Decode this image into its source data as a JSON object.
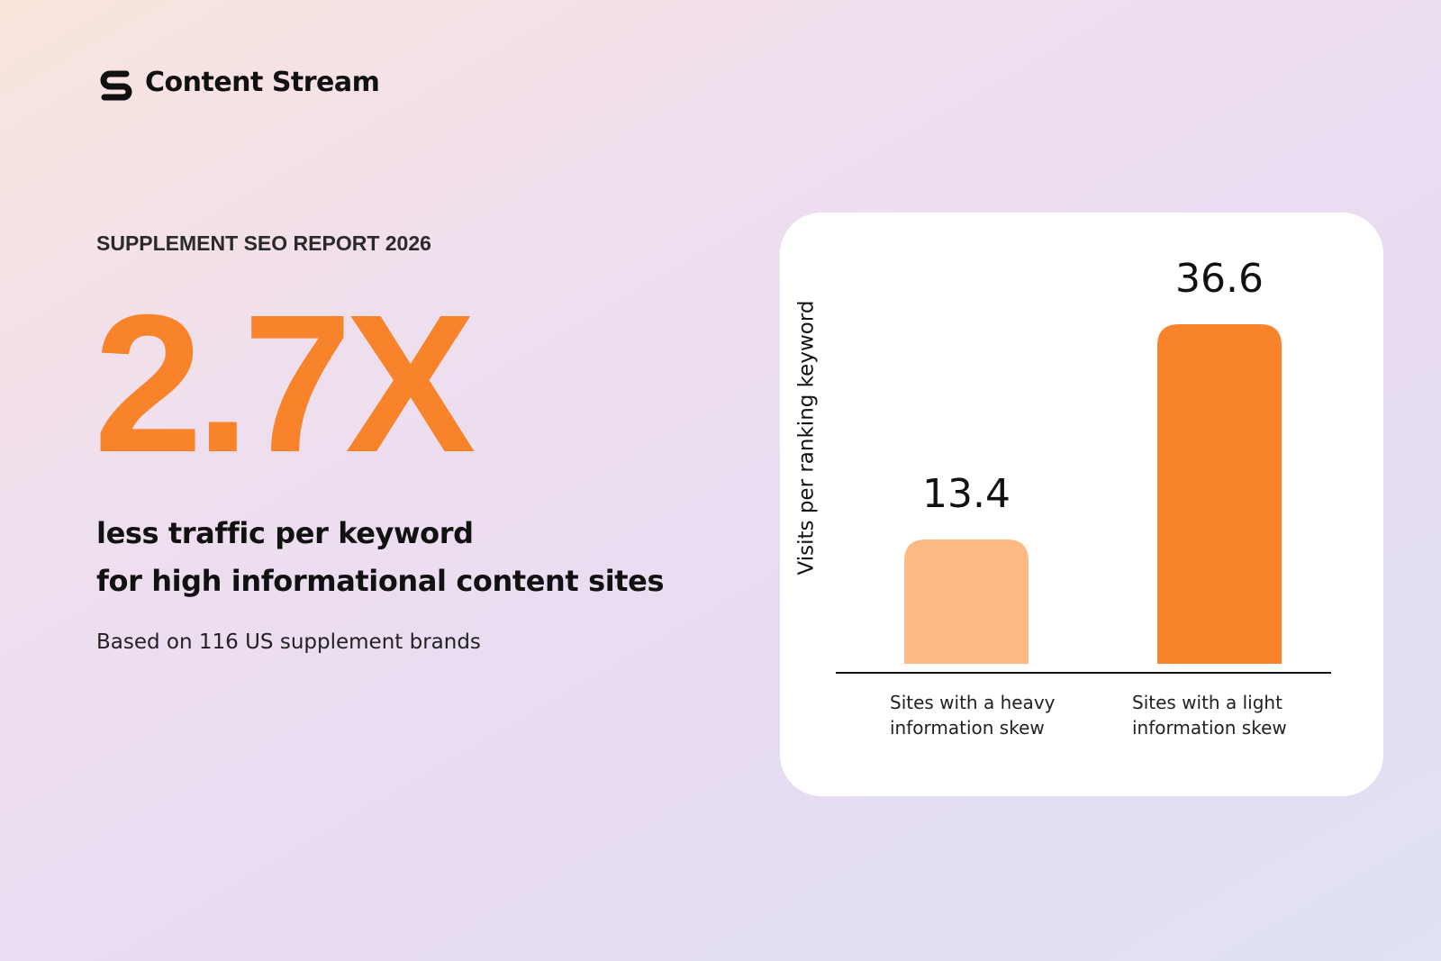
{
  "brand": "Content Stream",
  "report_title": "SUPPLEMENT SEO REPORT 2026",
  "headline": "2.7X",
  "subheadline": [
    "less traffic per keyword",
    "for high informational content sites"
  ],
  "note": "Based on 116 US supplement brands",
  "chart_data": {
    "type": "bar",
    "y_label": "Visits per ranking keyword",
    "categories": [
      "Sites with a heavy information skew",
      "Sites with a light information skew"
    ],
    "values": [
      13.4,
      36.6
    ],
    "colors": [
      "#ffb984",
      "#f8832b"
    ]
  }
}
